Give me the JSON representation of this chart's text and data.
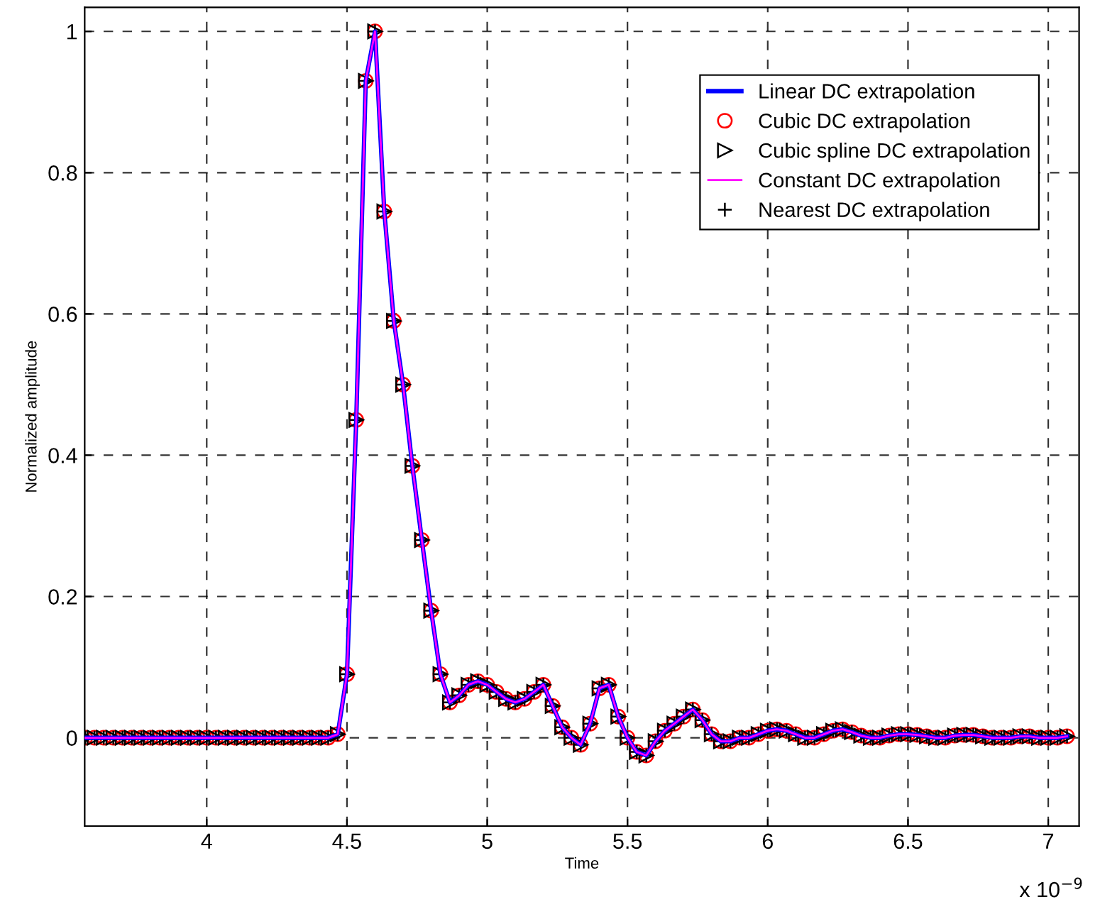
{
  "chart_data": {
    "type": "line",
    "xlabel": "Time",
    "ylabel": "Normalized amplitude",
    "annotations": [
      "x 10$^{−9}$"
    ],
    "x": [
      3.567,
      3.6,
      3.633,
      3.667,
      3.7,
      3.733,
      3.767,
      3.8,
      3.833,
      3.867,
      3.9,
      3.933,
      3.967,
      4.0,
      4.033,
      4.067,
      4.1,
      4.133,
      4.167,
      4.2,
      4.233,
      4.267,
      4.3,
      4.333,
      4.367,
      4.4,
      4.433,
      4.467,
      4.5,
      4.533,
      4.567,
      4.6,
      4.633,
      4.667,
      4.7,
      4.733,
      4.767,
      4.8,
      4.833,
      4.867,
      4.9,
      4.933,
      4.967,
      5.0,
      5.033,
      5.067,
      5.1,
      5.133,
      5.167,
      5.2,
      5.233,
      5.267,
      5.3,
      5.333,
      5.367,
      5.4,
      5.433,
      5.467,
      5.5,
      5.533,
      5.567,
      5.6,
      5.633,
      5.667,
      5.7,
      5.733,
      5.767,
      5.8,
      5.833,
      5.867,
      5.9,
      5.933,
      5.967,
      6.0,
      6.033,
      6.067,
      6.1,
      6.133,
      6.167,
      6.2,
      6.233,
      6.267,
      6.3,
      6.333,
      6.367,
      6.4,
      6.433,
      6.467,
      6.5,
      6.533,
      6.567,
      6.6,
      6.633,
      6.667,
      6.7,
      6.733,
      6.767,
      6.8,
      6.833,
      6.867,
      6.9,
      6.933,
      6.967,
      7.0,
      7.033,
      7.067
    ],
    "series": [
      {
        "name": "Linear DC extrapolation",
        "color": "#0000ff",
        "marker": "none",
        "values": [
          0,
          0,
          0,
          0,
          0,
          0,
          0,
          0,
          0,
          0,
          0,
          0,
          0,
          0,
          0,
          0,
          0,
          0,
          0,
          0,
          0,
          0,
          0,
          0,
          0,
          0,
          0,
          0.005,
          0.09,
          0.45,
          0.93,
          1.0,
          0.745,
          0.59,
          0.5,
          0.385,
          0.28,
          0.18,
          0.09,
          0.05,
          0.06,
          0.075,
          0.08,
          0.075,
          0.065,
          0.055,
          0.05,
          0.055,
          0.065,
          0.075,
          0.045,
          0.015,
          0.0,
          -0.01,
          0.02,
          0.07,
          0.075,
          0.03,
          0.0,
          -0.02,
          -0.025,
          -0.005,
          0.01,
          0.02,
          0.03,
          0.04,
          0.025,
          0.005,
          -0.005,
          -0.005,
          0.0,
          0.0,
          0.005,
          0.01,
          0.012,
          0.01,
          0.005,
          0.0,
          0.0,
          0.005,
          0.01,
          0.012,
          0.008,
          0.003,
          0.0,
          0.0,
          0.003,
          0.005,
          0.005,
          0.004,
          0.002,
          0.0,
          0.0,
          0.003,
          0.004,
          0.004,
          0.002,
          0.0,
          0.0,
          0.0,
          0.002,
          0.002,
          0.0,
          0.0,
          0.0,
          0.002
        ]
      },
      {
        "name": "Cubic DC extrapolation",
        "type": "scatter",
        "color": "#ff0000",
        "marker": "circle",
        "values": [
          0,
          0,
          0,
          0,
          0,
          0,
          0,
          0,
          0,
          0,
          0,
          0,
          0,
          0,
          0,
          0,
          0,
          0,
          0,
          0,
          0,
          0,
          0,
          0,
          0,
          0,
          0,
          0.005,
          0.09,
          0.45,
          0.93,
          1.0,
          0.745,
          0.59,
          0.5,
          0.385,
          0.28,
          0.18,
          0.09,
          0.05,
          0.06,
          0.075,
          0.08,
          0.075,
          0.065,
          0.055,
          0.05,
          0.055,
          0.065,
          0.075,
          0.045,
          0.015,
          0.0,
          -0.01,
          0.02,
          0.07,
          0.075,
          0.03,
          0.0,
          -0.02,
          -0.025,
          -0.005,
          0.01,
          0.02,
          0.03,
          0.04,
          0.025,
          0.005,
          -0.005,
          -0.005,
          0.0,
          0.0,
          0.005,
          0.01,
          0.012,
          0.01,
          0.005,
          0.0,
          0.0,
          0.005,
          0.01,
          0.012,
          0.008,
          0.003,
          0.0,
          0.0,
          0.003,
          0.005,
          0.005,
          0.004,
          0.002,
          0.0,
          0.0,
          0.003,
          0.004,
          0.004,
          0.002,
          0.0,
          0.0,
          0.0,
          0.002,
          0.002,
          0.0,
          0.0,
          0.0,
          0.002
        ]
      },
      {
        "name": "Cubic spline DC extrapolation",
        "type": "scatter",
        "color": "#000000",
        "marker": "triangle",
        "values": [
          0,
          0,
          0,
          0,
          0,
          0,
          0,
          0,
          0,
          0,
          0,
          0,
          0,
          0,
          0,
          0,
          0,
          0,
          0,
          0,
          0,
          0,
          0,
          0,
          0,
          0,
          0,
          0.005,
          0.09,
          0.45,
          0.93,
          1.0,
          0.745,
          0.59,
          0.5,
          0.385,
          0.28,
          0.18,
          0.09,
          0.05,
          0.06,
          0.075,
          0.08,
          0.075,
          0.065,
          0.055,
          0.05,
          0.055,
          0.065,
          0.075,
          0.045,
          0.015,
          0.0,
          -0.01,
          0.02,
          0.07,
          0.075,
          0.03,
          0.0,
          -0.02,
          -0.025,
          -0.005,
          0.01,
          0.02,
          0.03,
          0.04,
          0.025,
          0.005,
          -0.005,
          -0.005,
          0.0,
          0.0,
          0.005,
          0.01,
          0.012,
          0.01,
          0.005,
          0.0,
          0.0,
          0.005,
          0.01,
          0.012,
          0.008,
          0.003,
          0.0,
          0.0,
          0.003,
          0.005,
          0.005,
          0.004,
          0.002,
          0.0,
          0.0,
          0.003,
          0.004,
          0.004,
          0.002,
          0.0,
          0.0,
          0.0,
          0.002,
          0.002,
          0.0,
          0.0,
          0.0,
          0.002
        ]
      },
      {
        "name": "Constant DC extrapolation",
        "color": "#ff00ff",
        "marker": "none",
        "values": [
          0,
          0,
          0,
          0,
          0,
          0,
          0,
          0,
          0,
          0,
          0,
          0,
          0,
          0,
          0,
          0,
          0,
          0,
          0,
          0,
          0,
          0,
          0,
          0,
          0,
          0,
          0,
          0.005,
          0.09,
          0.45,
          0.93,
          1.0,
          0.745,
          0.59,
          0.5,
          0.385,
          0.28,
          0.18,
          0.09,
          0.05,
          0.06,
          0.075,
          0.08,
          0.075,
          0.065,
          0.055,
          0.05,
          0.055,
          0.065,
          0.075,
          0.045,
          0.015,
          0.0,
          -0.01,
          0.02,
          0.07,
          0.075,
          0.03,
          0.0,
          -0.02,
          -0.025,
          -0.005,
          0.01,
          0.02,
          0.03,
          0.04,
          0.025,
          0.005,
          -0.005,
          -0.005,
          0.0,
          0.0,
          0.005,
          0.01,
          0.012,
          0.01,
          0.005,
          0.0,
          0.0,
          0.005,
          0.01,
          0.012,
          0.008,
          0.003,
          0.0,
          0.0,
          0.003,
          0.005,
          0.005,
          0.004,
          0.002,
          0.0,
          0.0,
          0.003,
          0.004,
          0.004,
          0.002,
          0.0,
          0.0,
          0.0,
          0.002,
          0.002,
          0.0,
          0.0,
          0.0,
          0.002
        ]
      },
      {
        "name": "Nearest DC extrapolation",
        "type": "scatter",
        "color": "#000000",
        "marker": "cross",
        "values": [
          0,
          0,
          0,
          0,
          0,
          0,
          0,
          0,
          0,
          0,
          0,
          0,
          0,
          0,
          0,
          0,
          0,
          0,
          0,
          0,
          0,
          0,
          0,
          0,
          0,
          0,
          0,
          0.005,
          0.09,
          0.45,
          0.93,
          1.0,
          0.745,
          0.59,
          0.5,
          0.385,
          0.28,
          0.18,
          0.09,
          0.05,
          0.06,
          0.075,
          0.08,
          0.075,
          0.065,
          0.055,
          0.05,
          0.055,
          0.065,
          0.075,
          0.045,
          0.015,
          0.0,
          -0.01,
          0.02,
          0.07,
          0.075,
          0.03,
          0.0,
          -0.02,
          -0.025,
          -0.005,
          0.01,
          0.02,
          0.03,
          0.04,
          0.025,
          0.005,
          -0.005,
          -0.005,
          0.0,
          0.0,
          0.005,
          0.01,
          0.012,
          0.01,
          0.005,
          0.0,
          0.0,
          0.005,
          0.01,
          0.012,
          0.008,
          0.003,
          0.0,
          0.0,
          0.003,
          0.005,
          0.005,
          0.004,
          0.002,
          0.0,
          0.0,
          0.003,
          0.004,
          0.004,
          0.002,
          0.0,
          0.0,
          0.0,
          0.002,
          0.002,
          0.0,
          0.0,
          0.0,
          0.002
        ]
      }
    ],
    "xlim": [
      3.565,
      7.11
    ],
    "xticks": [
      4,
      4.5,
      5,
      5.5,
      6,
      6.5,
      7
    ],
    "ylim": [
      -0.125,
      1.034
    ],
    "yticks": [
      0,
      0.2,
      0.4,
      0.6,
      0.8,
      1
    ],
    "grid": true,
    "legend": "top right"
  }
}
